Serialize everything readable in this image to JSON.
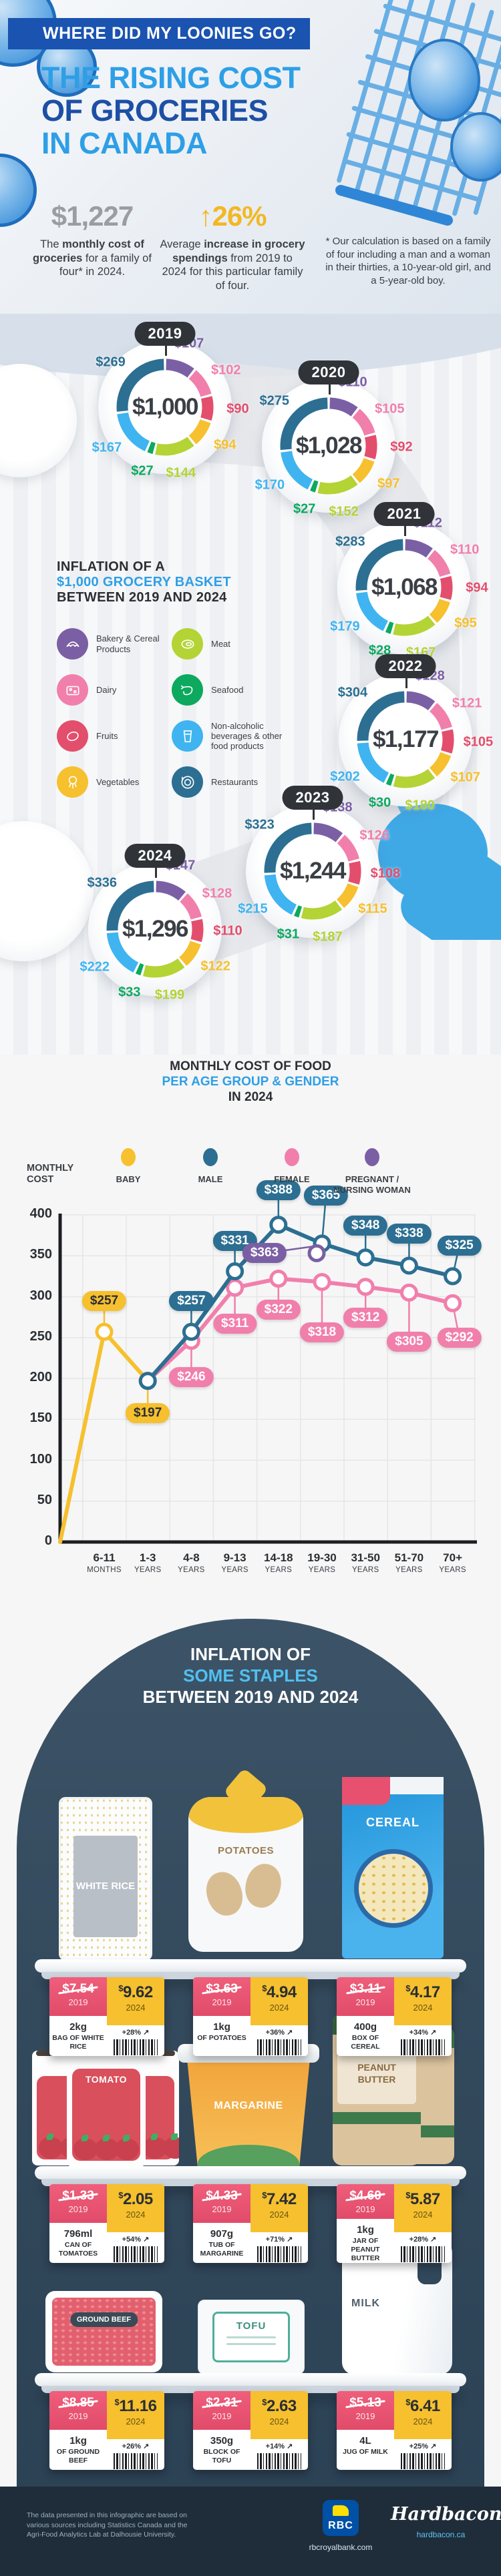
{
  "hero": {
    "kicker": "WHERE DID MY LOONIES GO?",
    "title_lines": [
      "THE RISING COST",
      "OF GROCERIES",
      "IN CANADA"
    ],
    "stat_monthly": {
      "value": "$1,227",
      "pre": "The ",
      "bold": "monthly cost of groceries",
      "post": " for a family of four* in 2024."
    },
    "stat_increase": {
      "arrow": "↑",
      "value": "26%",
      "pre": "Average ",
      "bold": "increase in grocery spendings",
      "post": " from 2019 to 2024 for this particular family of four."
    },
    "footnote": "* Our calculation is based on a family of four including a man and a woman in their thirties, a 10-year-old girl, and a 5-year-old boy."
  },
  "basket_section": {
    "title_line1": "INFLATION OF A",
    "title_line2": "$1,000 GROCERY BASKET",
    "title_line3": "BETWEEN 2019 AND 2024"
  },
  "age_chart": {
    "title_line1": "MONTHLY COST OF FOOD",
    "title_line2": "PER AGE GROUP & GENDER",
    "title_line3": "IN 2024",
    "ylabel_lines": [
      "MONTHLY",
      "COST"
    ]
  },
  "staples_section": {
    "title_line1": "INFLATION OF",
    "title_line2": "SOME STAPLES",
    "title_line3": "BETWEEN 2019 AND 2024",
    "tag_year_old": "2019",
    "tag_year_new": "2024"
  },
  "footer": {
    "disclaimer": "The data presented in this infographic are based on various sources including Statistics Canada and the Agri-Food Analytics Lab at Dalhousie University.",
    "rbc_label": "RBC",
    "rbc_url": "rbcroyalbank.com",
    "hardbacon_label": "Hardbacon",
    "hardbacon_url": "hardbacon.ca"
  },
  "chart_data": [
    {
      "type": "donut-series",
      "title": "INFLATION OF A $1,000 GROCERY BASKET BETWEEN 2019 AND 2024",
      "categories": [
        {
          "label": "Bakery & Cereal Products",
          "color": "#7b5fa4",
          "icon": "croissant-icon"
        },
        {
          "label": "Dairy",
          "color": "#f17fab",
          "icon": "cheese-icon"
        },
        {
          "label": "Fruits",
          "color": "#e34e6d",
          "icon": "lemon-icon"
        },
        {
          "label": "Vegetables",
          "color": "#f6c02e",
          "icon": "broccoli-icon"
        },
        {
          "label": "Meat",
          "color": "#b4d335",
          "icon": "steak-icon"
        },
        {
          "label": "Seafood",
          "color": "#0ca95f",
          "icon": "shrimp-icon"
        },
        {
          "label": "Non-alcoholic beverages & other food products",
          "color": "#3fb4f1",
          "icon": "glass-icon"
        },
        {
          "label": "Restaurants",
          "color": "#2c6f92",
          "icon": "plate-icon"
        }
      ],
      "years": [
        {
          "year": "2019",
          "center_label": "$1,000",
          "values": [
            107,
            102,
            90,
            94,
            144,
            27,
            167,
            269
          ]
        },
        {
          "year": "2020",
          "center_label": "$1,028",
          "values": [
            110,
            105,
            92,
            97,
            152,
            27,
            170,
            275
          ]
        },
        {
          "year": "2021",
          "center_label": "$1,068",
          "values": [
            112,
            110,
            94,
            95,
            167,
            28,
            179,
            283
          ]
        },
        {
          "year": "2022",
          "center_label": "$1,177",
          "values": [
            128,
            121,
            105,
            107,
            180,
            30,
            202,
            304
          ]
        },
        {
          "year": "2023",
          "center_label": "$1,244",
          "values": [
            138,
            126,
            108,
            115,
            187,
            31,
            215,
            323
          ]
        },
        {
          "year": "2024",
          "center_label": "$1,296",
          "values": [
            147,
            128,
            110,
            122,
            199,
            33,
            222,
            336
          ]
        }
      ]
    },
    {
      "type": "line",
      "title": "MONTHLY COST OF FOOD PER AGE GROUP & GENDER IN 2024",
      "ylabel": "MONTHLY COST",
      "ylim": [
        0,
        400
      ],
      "ytick_step": 50,
      "categories": [
        [
          "6-11",
          "MONTHS"
        ],
        [
          "1-3",
          "YEARS"
        ],
        [
          "4-8",
          "YEARS"
        ],
        [
          "9-13",
          "YEARS"
        ],
        [
          "14-18",
          "YEARS"
        ],
        [
          "19-30",
          "YEARS"
        ],
        [
          "31-50",
          "YEARS"
        ],
        [
          "51-70",
          "YEARS"
        ],
        [
          "70+",
          "YEARS"
        ]
      ],
      "series": [
        {
          "name": "BABY",
          "color": "#f6c02e",
          "values": [
            257,
            197,
            null,
            null,
            null,
            null,
            null,
            null,
            null
          ],
          "labels": [
            "$257",
            "$197",
            null,
            null,
            null,
            null,
            null,
            null,
            null
          ]
        },
        {
          "name": "MALE",
          "color": "#2c6f92",
          "values": [
            null,
            197,
            257,
            331,
            388,
            365,
            348,
            338,
            325
          ],
          "labels": [
            null,
            null,
            "$257",
            "$331",
            "$388",
            "$365",
            "$348",
            "$338",
            "$325"
          ]
        },
        {
          "name": "FEMALE",
          "color": "#f17fab",
          "values": [
            null,
            197,
            246,
            311,
            322,
            318,
            312,
            305,
            292
          ],
          "labels": [
            null,
            null,
            "$246",
            "$311",
            "$322",
            "$318",
            "$312",
            "$305",
            "$292"
          ]
        },
        {
          "name": "PREGNANT / NURSING WOMAN",
          "color": "#7b5fa4",
          "values": [
            null,
            null,
            null,
            null,
            null,
            363,
            null,
            null,
            null
          ],
          "labels": [
            null,
            null,
            null,
            null,
            null,
            "$363",
            null,
            null,
            null
          ]
        }
      ]
    },
    {
      "type": "table",
      "title": "INFLATION OF SOME STAPLES BETWEEN 2019 AND 2024",
      "items": [
        {
          "name": "WHITE RICE",
          "price_2019": "$7.54",
          "price_2024": "9.62",
          "size": "2kg",
          "unit_label": "BAG OF WHITE RICE",
          "change": "+28%"
        },
        {
          "name": "POTATOES",
          "price_2019": "$3.63",
          "price_2024": "4.94",
          "size": "1kg",
          "unit_label": "OF POTATOES",
          "change": "+36%"
        },
        {
          "name": "CEREAL",
          "price_2019": "$3.11",
          "price_2024": "4.17",
          "size": "400g",
          "unit_label": "BOX OF CEREAL",
          "change": "+34%"
        },
        {
          "name": "TOMATO",
          "price_2019": "$1.33",
          "price_2024": "2.05",
          "size": "796ml",
          "unit_label": "CAN OF TOMATOES",
          "change": "+54%"
        },
        {
          "name": "MARGARINE",
          "price_2019": "$4.33",
          "price_2024": "7.42",
          "size": "907g",
          "unit_label": "TUB OF MARGARINE",
          "change": "+71%"
        },
        {
          "name": "PEANUT BUTTER",
          "price_2019": "$4.60",
          "price_2024": "5.87",
          "size": "1kg",
          "unit_label": "JAR OF PEANUT BUTTER",
          "change": "+28%"
        },
        {
          "name": "GROUND BEEF",
          "price_2019": "$8.85",
          "price_2024": "11.16",
          "size": "1kg",
          "unit_label": "OF GROUND BEEF",
          "change": "+26%"
        },
        {
          "name": "TOFU",
          "price_2019": "$2.31",
          "price_2024": "2.63",
          "size": "350g",
          "unit_label": "BLOCK OF TOFU",
          "change": "+14%"
        },
        {
          "name": "MILK",
          "price_2019": "$5.13",
          "price_2024": "6.41",
          "size": "4L",
          "unit_label": "JUG OF MILK",
          "change": "+25%"
        }
      ]
    }
  ]
}
